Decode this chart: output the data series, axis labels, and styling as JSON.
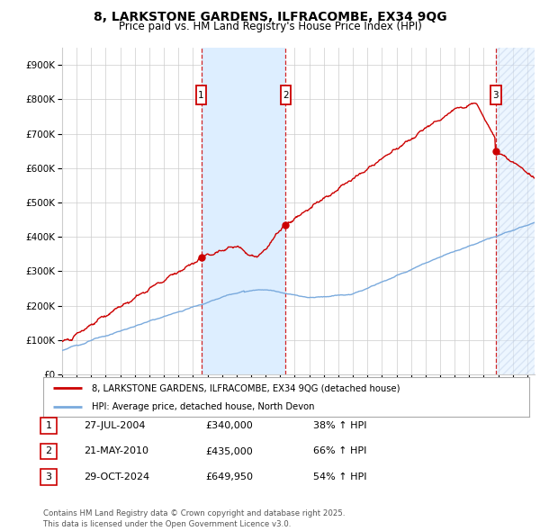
{
  "title": "8, LARKSTONE GARDENS, ILFRACOMBE, EX34 9QG",
  "subtitle": "Price paid vs. HM Land Registry's House Price Index (HPI)",
  "ylim": [
    0,
    950000
  ],
  "xlim_start": 1995.0,
  "xlim_end": 2027.5,
  "transaction_dates": [
    2004.57,
    2010.38,
    2024.83
  ],
  "transaction_prices": [
    340000,
    435000,
    649950
  ],
  "transaction_labels": [
    "1",
    "2",
    "3"
  ],
  "sale_color": "#cc0000",
  "hpi_color": "#7aaadd",
  "shade_color": "#ddeeff",
  "dashed_color": "#cc0000",
  "hatch_color": "#aabbdd",
  "legend_sale_label": "8, LARKSTONE GARDENS, ILFRACOMBE, EX34 9QG (detached house)",
  "legend_hpi_label": "HPI: Average price, detached house, North Devon",
  "table_rows": [
    [
      "1",
      "27-JUL-2004",
      "£340,000",
      "38% ↑ HPI"
    ],
    [
      "2",
      "21-MAY-2010",
      "£435,000",
      "66% ↑ HPI"
    ],
    [
      "3",
      "29-OCT-2024",
      "£649,950",
      "54% ↑ HPI"
    ]
  ],
  "footnote": "Contains HM Land Registry data © Crown copyright and database right 2025.\nThis data is licensed under the Open Government Licence v3.0.",
  "background_color": "#ffffff",
  "grid_color": "#cccccc"
}
